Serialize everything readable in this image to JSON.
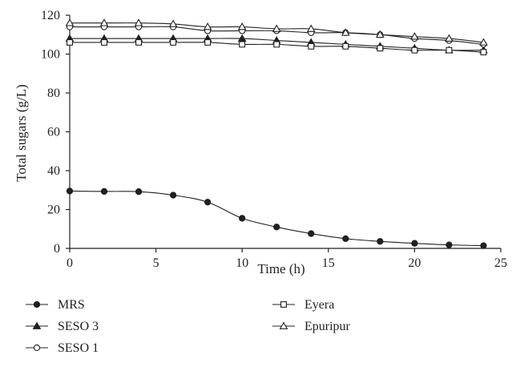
{
  "chart_data": {
    "type": "line",
    "xlabel": "Time (h)",
    "ylabel": "Total sugars (g/L)",
    "xlim": [
      0,
      25
    ],
    "ylim": [
      0,
      120
    ],
    "xticks": [
      0,
      5,
      10,
      15,
      20,
      25
    ],
    "yticks": [
      0,
      20,
      40,
      60,
      80,
      100,
      120
    ],
    "grid": false,
    "legend_position": "bottom",
    "x": [
      0,
      2,
      4,
      6,
      8,
      10,
      12,
      14,
      16,
      18,
      20,
      22,
      24
    ],
    "series": [
      {
        "name": "MRS",
        "marker": "filled-circle",
        "values": [
          29.5,
          29.3,
          29.2,
          27.4,
          23.8,
          15.5,
          11.0,
          7.6,
          5.0,
          3.6,
          2.6,
          1.8,
          1.4
        ]
      },
      {
        "name": "SESO 3",
        "marker": "filled-triangle",
        "values": [
          108.0,
          108.0,
          108.0,
          108.0,
          108.0,
          108.0,
          107.0,
          106.0,
          105.0,
          104.0,
          103.0,
          102.0,
          102.0
        ]
      },
      {
        "name": "SESO 1",
        "marker": "open-circle",
        "values": [
          114.0,
          114.0,
          114.0,
          114.0,
          112.0,
          112.0,
          112.0,
          111.0,
          111.0,
          110.0,
          108.0,
          107.0,
          105.0
        ]
      },
      {
        "name": "Eyera",
        "marker": "open-square",
        "values": [
          106.0,
          106.0,
          106.0,
          106.0,
          106.0,
          105.0,
          105.0,
          104.0,
          104.0,
          103.0,
          102.0,
          102.0,
          101.0
        ]
      },
      {
        "name": "Epuripur",
        "marker": "open-triangle",
        "values": [
          116.0,
          116.0,
          116.0,
          115.5,
          114.0,
          114.0,
          113.0,
          113.0,
          111.0,
          110.0,
          109.0,
          108.0,
          106.0
        ]
      }
    ]
  }
}
